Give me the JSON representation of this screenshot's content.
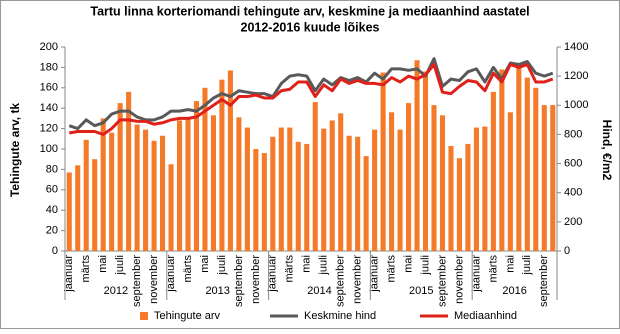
{
  "chart_data": {
    "type": "bar-line",
    "title": [
      "Tartu linna korteriomandi tehingute arv, keskmine ja mediaanhind aastatel",
      "2012-2016 kuude lõikes"
    ],
    "ylabel": "Tehingute arv, tk",
    "y2label": "Hind, €/m2",
    "categories": [
      "jaanuar",
      null,
      "märts",
      null,
      "mai",
      null,
      "juuli",
      null,
      "september",
      null,
      "november",
      null,
      "jaanuar",
      null,
      "märts",
      null,
      "mai",
      null,
      "juuli",
      null,
      "september",
      null,
      "november",
      null,
      "jaanuar",
      null,
      "märts",
      null,
      "mai",
      null,
      "juuli",
      null,
      "september",
      null,
      "november",
      null,
      "jaanuar",
      null,
      "märts",
      null,
      "mai",
      null,
      "juuli",
      null,
      "september",
      null,
      "november",
      null,
      "jaanuar",
      null,
      "märts",
      null,
      "mai",
      null,
      "juuli",
      null,
      "september",
      null
    ],
    "groups": [
      "2012",
      "2013",
      "2014",
      "2015",
      "2016"
    ],
    "series": [
      {
        "name": "Tehingute arv",
        "type": "bar",
        "color": "#f47a2a",
        "values": [
          77,
          84,
          109,
          90,
          130,
          116,
          145,
          156,
          124,
          119,
          108,
          113,
          85,
          128,
          131,
          147,
          160,
          133,
          168,
          177,
          131,
          121,
          100,
          96,
          112,
          121,
          121,
          107,
          105,
          146,
          120,
          128,
          135,
          113,
          112,
          93,
          119,
          175,
          136,
          119,
          145,
          187,
          176,
          143,
          133,
          103,
          91,
          105,
          121,
          122,
          156,
          178,
          136,
          181,
          170,
          160,
          143,
          143
        ]
      },
      {
        "name": "Keskmine hind",
        "type": "line",
        "axis": "y2",
        "color": "#595959",
        "values": [
          860,
          840,
          900,
          860,
          880,
          940,
          960,
          960,
          920,
          900,
          900,
          920,
          960,
          960,
          970,
          960,
          1000,
          1050,
          1080,
          1060,
          1100,
          1090,
          1080,
          1080,
          1060,
          1150,
          1200,
          1210,
          1200,
          1100,
          1180,
          1140,
          1190,
          1170,
          1190,
          1160,
          1220,
          1180,
          1250,
          1250,
          1240,
          1250,
          1200,
          1320,
          1130,
          1180,
          1170,
          1230,
          1250,
          1160,
          1260,
          1180,
          1290,
          1280,
          1300,
          1220,
          1200,
          1220
        ]
      },
      {
        "name": "Mediaanhind",
        "type": "line",
        "axis": "y2",
        "color": "#e0201b",
        "values": [
          810,
          820,
          820,
          820,
          800,
          840,
          900,
          900,
          890,
          890,
          870,
          880,
          900,
          910,
          910,
          920,
          960,
          1000,
          1040,
          1000,
          1060,
          1060,
          1070,
          1050,
          1050,
          1100,
          1110,
          1160,
          1160,
          1060,
          1140,
          1100,
          1180,
          1150,
          1170,
          1150,
          1150,
          1140,
          1190,
          1160,
          1200,
          1180,
          1210,
          1280,
          1090,
          1080,
          1130,
          1170,
          1160,
          1100,
          1220,
          1160,
          1280,
          1260,
          1280,
          1160,
          1160,
          1180
        ]
      }
    ],
    "ylim": [
      0,
      200
    ],
    "yticks": [
      0,
      20,
      40,
      60,
      80,
      100,
      120,
      140,
      160,
      180,
      200
    ],
    "y2lim": [
      0,
      1400
    ],
    "y2ticks": [
      0,
      200,
      400,
      600,
      800,
      1000,
      1200,
      1400
    ],
    "legend": "bottom"
  }
}
